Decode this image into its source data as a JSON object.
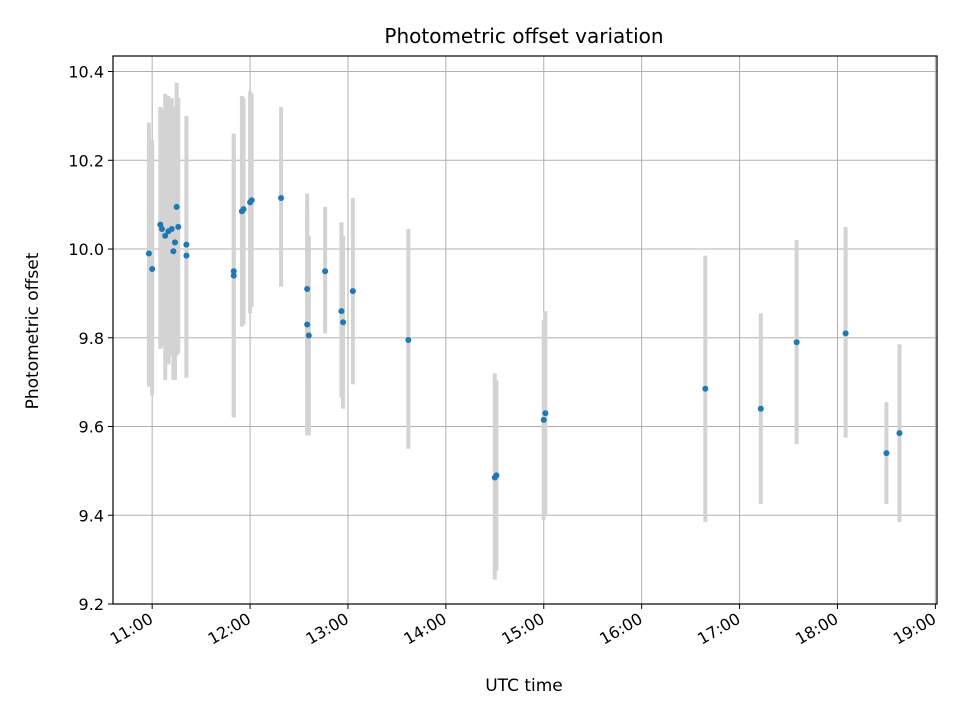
{
  "chart_data": {
    "type": "scatter",
    "title": "Photometric offset variation",
    "xlabel": "UTC time",
    "ylabel": "Photometric offset",
    "x_unit": "hours",
    "xlim": [
      "10:36",
      "19:01"
    ],
    "ylim": [
      9.2,
      10.435
    ],
    "grid": true,
    "x_ticks": [
      "11:00",
      "12:00",
      "13:00",
      "14:00",
      "15:00",
      "16:00",
      "17:00",
      "18:00",
      "19:00"
    ],
    "y_ticks": [
      "9.2",
      "9.4",
      "9.6",
      "9.8",
      "10.0",
      "10.2",
      "10.4"
    ],
    "colors": {
      "point": "#1f77b4",
      "errorbar": "#d3d3d3",
      "grid": "#b0b0b0"
    },
    "series": [
      {
        "points": [
          {
            "x": "10:58",
            "y": 9.99,
            "ylo": 9.69,
            "yhi": 10.285
          },
          {
            "x": "11:00",
            "y": 9.955,
            "ylo": 9.67,
            "yhi": 10.245
          },
          {
            "x": "11:05",
            "y": 10.055,
            "ylo": 9.775,
            "yhi": 10.32
          },
          {
            "x": "11:06",
            "y": 10.045,
            "ylo": 9.78,
            "yhi": 10.315
          },
          {
            "x": "11:08",
            "y": 10.03,
            "ylo": 9.705,
            "yhi": 10.35
          },
          {
            "x": "11:10",
            "y": 10.04,
            "ylo": 9.74,
            "yhi": 10.345
          },
          {
            "x": "11:12",
            "y": 10.045,
            "ylo": 9.76,
            "yhi": 10.34
          },
          {
            "x": "11:13",
            "y": 9.995,
            "ylo": 9.705,
            "yhi": 10.31
          },
          {
            "x": "11:14",
            "y": 10.015,
            "ylo": 9.705,
            "yhi": 10.32
          },
          {
            "x": "11:15",
            "y": 10.095,
            "ylo": 9.76,
            "yhi": 10.375
          },
          {
            "x": "11:16",
            "y": 10.05,
            "ylo": 9.765,
            "yhi": 10.34
          },
          {
            "x": "11:21",
            "y": 10.01,
            "ylo": 9.72,
            "yhi": 10.3
          },
          {
            "x": "11:21",
            "y": 9.985,
            "ylo": 9.71,
            "yhi": 10.28
          },
          {
            "x": "11:50",
            "y": 9.95,
            "ylo": 9.62,
            "yhi": 10.26
          },
          {
            "x": "11:50",
            "y": 9.94,
            "ylo": 9.63,
            "yhi": 10.25
          },
          {
            "x": "11:55",
            "y": 10.085,
            "ylo": 9.825,
            "yhi": 10.345
          },
          {
            "x": "11:56",
            "y": 10.09,
            "ylo": 9.83,
            "yhi": 10.34
          },
          {
            "x": "12:00",
            "y": 10.105,
            "ylo": 9.855,
            "yhi": 10.355
          },
          {
            "x": "12:01",
            "y": 10.11,
            "ylo": 9.87,
            "yhi": 10.35
          },
          {
            "x": "12:19",
            "y": 10.115,
            "ylo": 9.915,
            "yhi": 10.32
          },
          {
            "x": "12:35",
            "y": 9.91,
            "ylo": 9.695,
            "yhi": 10.125
          },
          {
            "x": "12:35",
            "y": 9.83,
            "ylo": 9.58,
            "yhi": 10.08
          },
          {
            "x": "12:36",
            "y": 9.805,
            "ylo": 9.58,
            "yhi": 10.03
          },
          {
            "x": "12:46",
            "y": 9.95,
            "ylo": 9.81,
            "yhi": 10.095
          },
          {
            "x": "12:56",
            "y": 9.86,
            "ylo": 9.665,
            "yhi": 10.06
          },
          {
            "x": "12:57",
            "y": 9.835,
            "ylo": 9.64,
            "yhi": 10.03
          },
          {
            "x": "13:03",
            "y": 9.905,
            "ylo": 9.695,
            "yhi": 10.115
          },
          {
            "x": "13:37",
            "y": 9.795,
            "ylo": 9.55,
            "yhi": 10.045
          },
          {
            "x": "14:30",
            "y": 9.485,
            "ylo": 9.255,
            "yhi": 9.72
          },
          {
            "x": "14:31",
            "y": 9.49,
            "ylo": 9.275,
            "yhi": 9.705
          },
          {
            "x": "15:00",
            "y": 9.615,
            "ylo": 9.39,
            "yhi": 9.84
          },
          {
            "x": "15:01",
            "y": 9.63,
            "ylo": 9.4,
            "yhi": 9.86
          },
          {
            "x": "16:39",
            "y": 9.685,
            "ylo": 9.385,
            "yhi": 9.985
          },
          {
            "x": "17:13",
            "y": 9.64,
            "ylo": 9.425,
            "yhi": 9.855
          },
          {
            "x": "17:35",
            "y": 9.79,
            "ylo": 9.56,
            "yhi": 10.02
          },
          {
            "x": "18:05",
            "y": 9.81,
            "ylo": 9.575,
            "yhi": 10.05
          },
          {
            "x": "18:30",
            "y": 9.54,
            "ylo": 9.425,
            "yhi": 9.655
          },
          {
            "x": "18:38",
            "y": 9.585,
            "ylo": 9.385,
            "yhi": 9.785
          }
        ]
      }
    ]
  }
}
